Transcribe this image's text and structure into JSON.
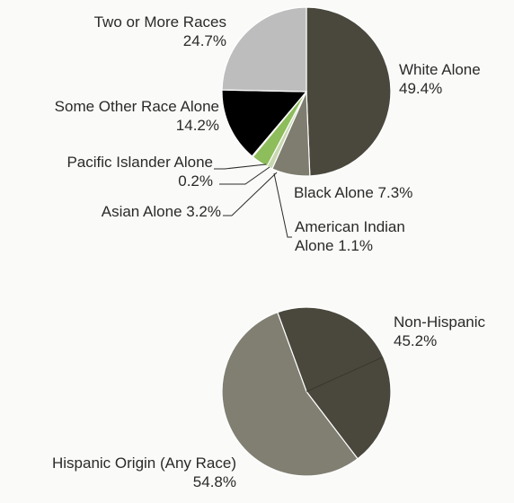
{
  "chart_data": [
    {
      "type": "pie",
      "slices": [
        {
          "label": "White Alone",
          "value": 49.4,
          "value_text": "49.4%",
          "color": "#4a483d"
        },
        {
          "label": "Black Alone",
          "value": 7.3,
          "value_text": "7.3%",
          "color": "#7e7d6f"
        },
        {
          "label": "American Indian Alone",
          "value": 1.1,
          "value_text": "1.1%",
          "color": "#c8d8b0"
        },
        {
          "label": "Asian Alone",
          "value": 3.2,
          "value_text": "3.2%",
          "color": "#8ebd5c"
        },
        {
          "label": "Pacific Islander Alone",
          "value": 0.2,
          "value_text": "0.2%",
          "color": "#3d6b1f"
        },
        {
          "label": "Some Other Race Alone",
          "value": 14.2,
          "value_text": "14.2%",
          "color": "#000000"
        },
        {
          "label": "Two or More Races",
          "value": 24.7,
          "value_text": "24.7%",
          "color": "#bdbdbd"
        }
      ]
    },
    {
      "type": "pie",
      "slices": [
        {
          "label": "Non-Hispanic",
          "value": 45.2,
          "value_text": "45.2%",
          "color": "#4a483d"
        },
        {
          "label": "Hispanic Origin (Any Race)",
          "value": 54.8,
          "value_text": "54.8%",
          "color": "#807f72"
        }
      ]
    }
  ]
}
